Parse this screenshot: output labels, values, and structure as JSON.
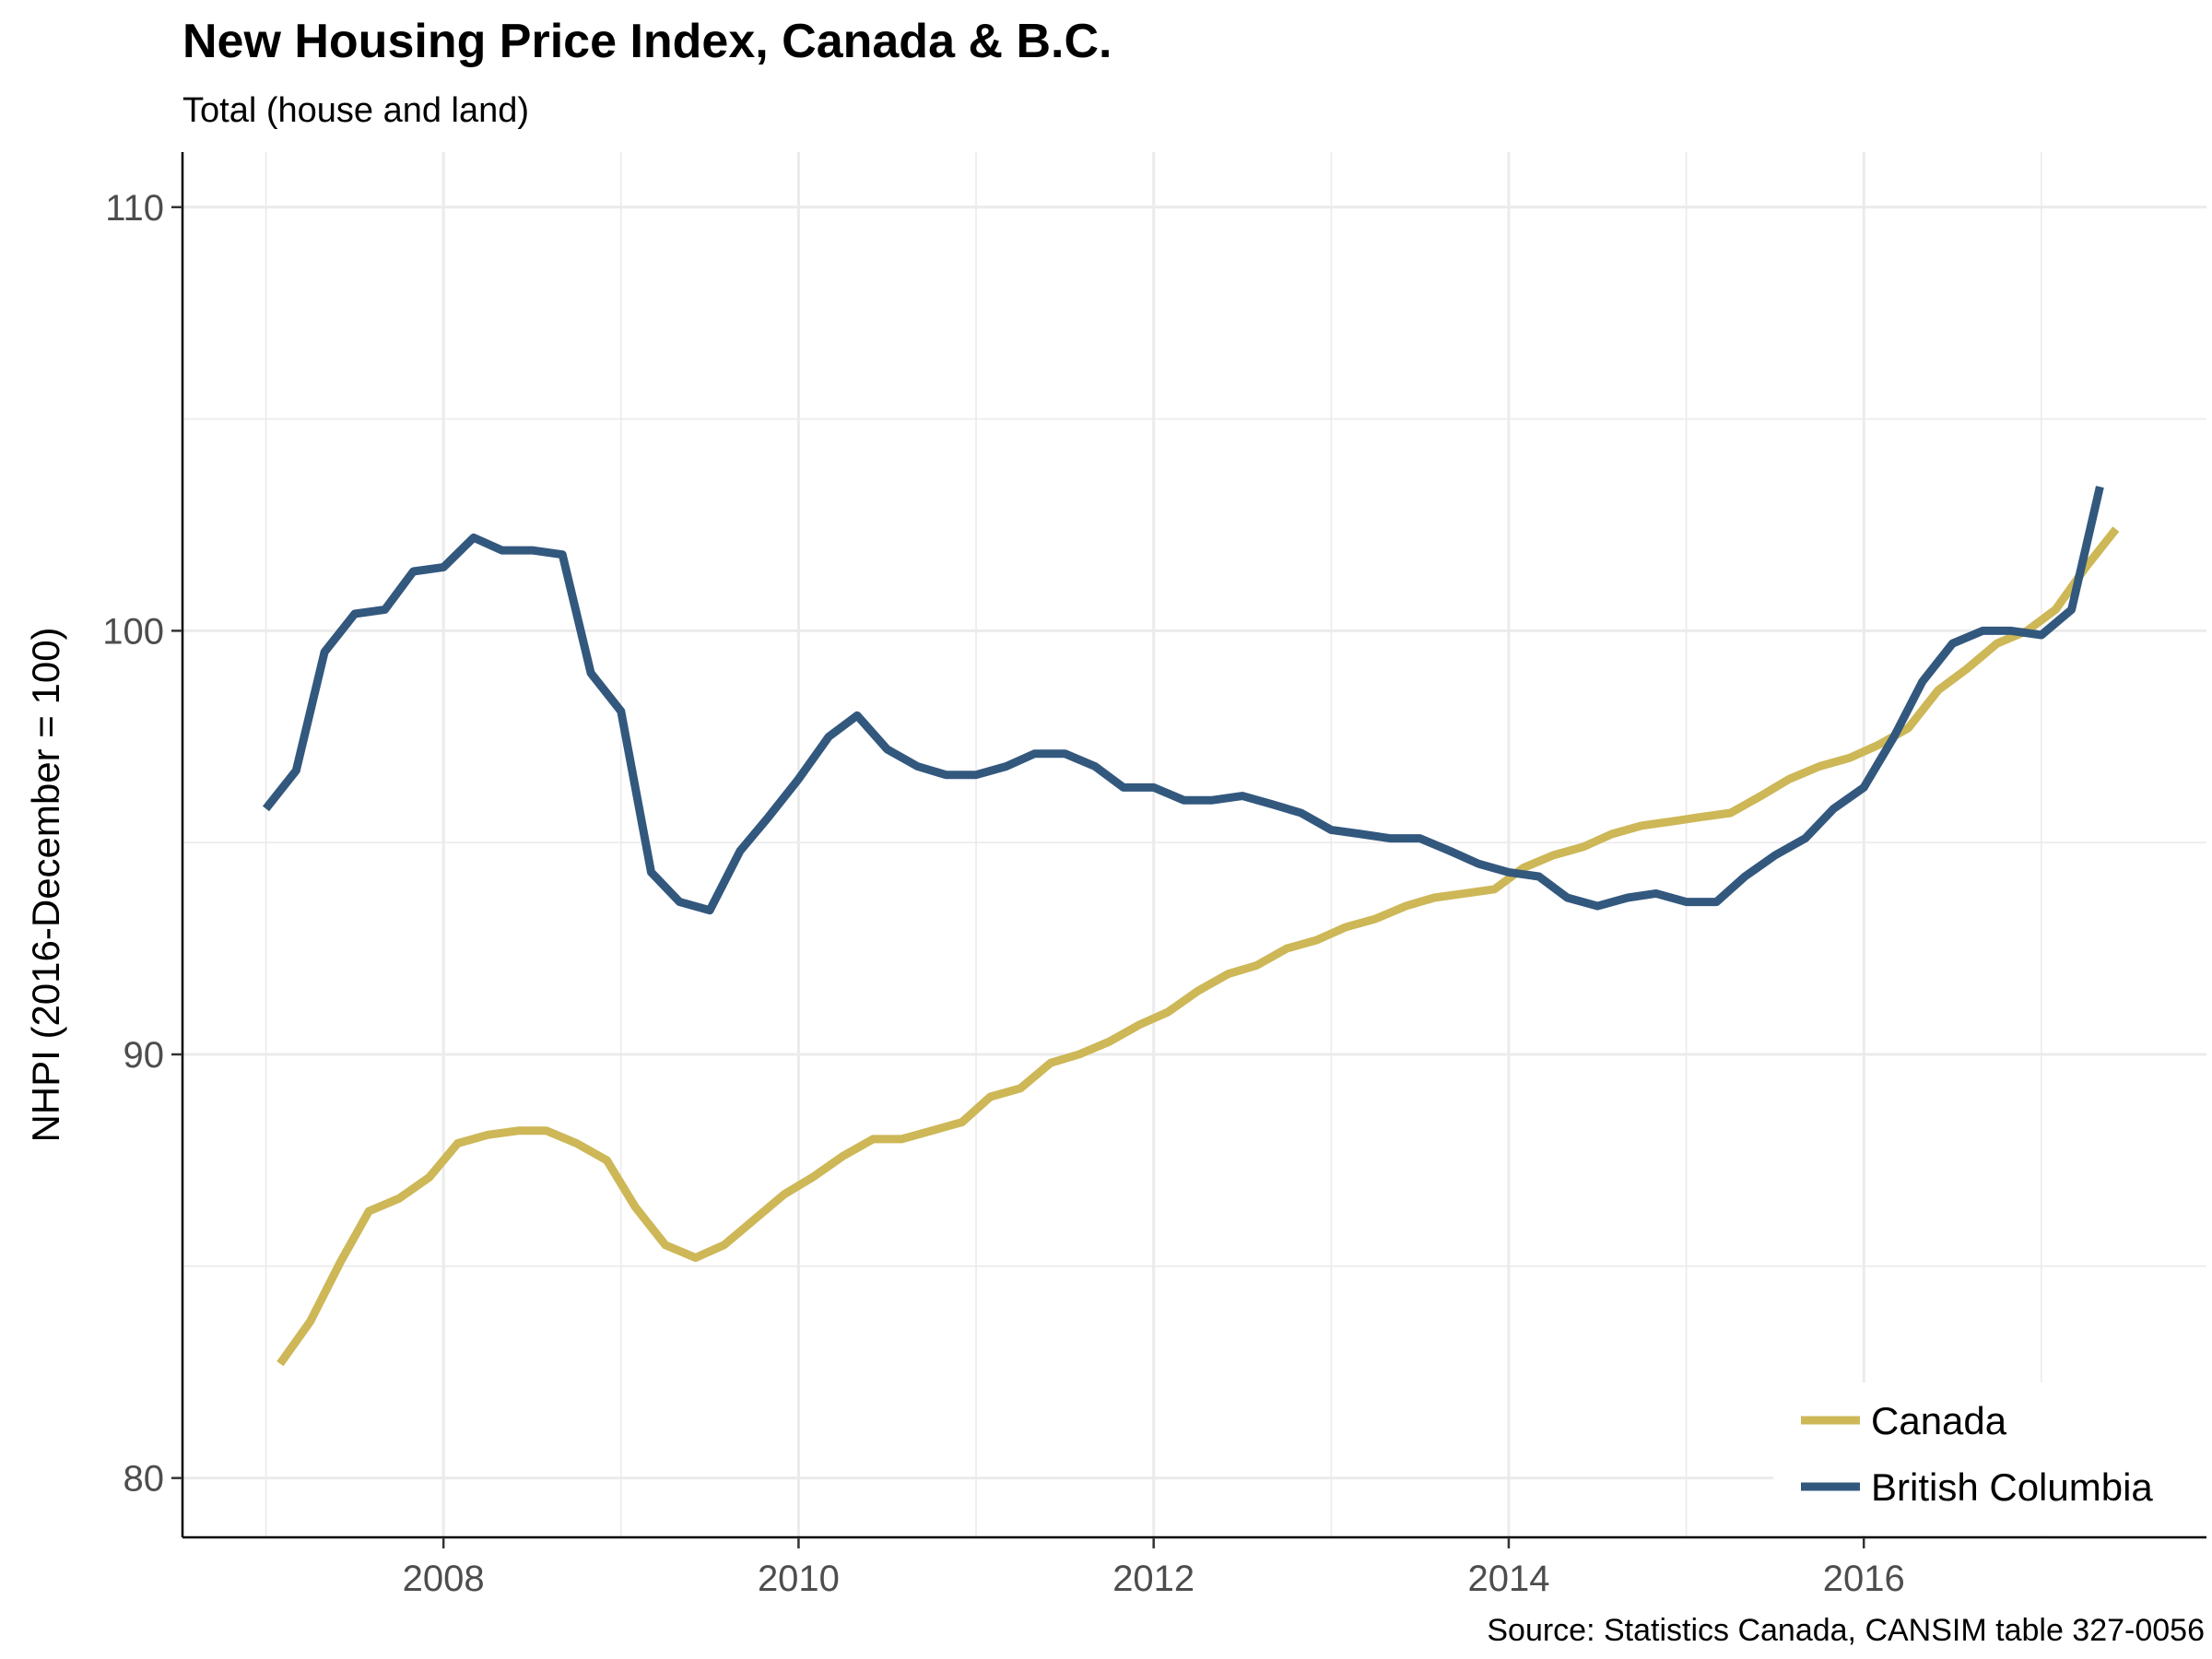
{
  "chart_data": {
    "type": "line",
    "title": "New Housing Price Index, Canada & B.C.",
    "subtitle": "Total (house and land)",
    "ylabel": "NHPI (2016-December = 100)",
    "xlabel": "",
    "caption": "Source: Statistics Canada, CANSIM table 327-0056",
    "xlim": [
      2006.53,
      2017.93
    ],
    "ylim": [
      78.6,
      111.3
    ],
    "x_ticks": [
      2008,
      2010,
      2012,
      2014,
      2016
    ],
    "x_tick_labels": [
      "2008",
      "2010",
      "2012",
      "2014",
      "2016"
    ],
    "y_ticks": [
      80,
      90,
      100,
      110
    ],
    "y_tick_labels": [
      "80",
      "90",
      "100",
      "110"
    ],
    "grid": true,
    "legend_position": "bottom-right",
    "series": [
      {
        "name": "Canada",
        "color": "#CDB757",
        "points": [
          [
            2007.08,
            82.7
          ],
          [
            2007.25,
            83.7
          ],
          [
            2007.42,
            85.1
          ],
          [
            2007.58,
            86.3
          ],
          [
            2007.75,
            86.6
          ],
          [
            2007.92,
            87.1
          ],
          [
            2008.08,
            87.9
          ],
          [
            2008.25,
            88.1
          ],
          [
            2008.42,
            88.2
          ],
          [
            2008.58,
            88.2
          ],
          [
            2008.75,
            87.9
          ],
          [
            2008.92,
            87.5
          ],
          [
            2009.08,
            86.4
          ],
          [
            2009.25,
            85.5
          ],
          [
            2009.42,
            85.2
          ],
          [
            2009.58,
            85.5
          ],
          [
            2009.75,
            86.1
          ],
          [
            2009.92,
            86.7
          ],
          [
            2010.08,
            87.1
          ],
          [
            2010.25,
            87.6
          ],
          [
            2010.42,
            88.0
          ],
          [
            2010.58,
            88.0
          ],
          [
            2010.75,
            88.2
          ],
          [
            2010.92,
            88.4
          ],
          [
            2011.08,
            89.0
          ],
          [
            2011.25,
            89.2
          ],
          [
            2011.42,
            89.8
          ],
          [
            2011.58,
            90.0
          ],
          [
            2011.75,
            90.3
          ],
          [
            2011.92,
            90.7
          ],
          [
            2012.08,
            91.0
          ],
          [
            2012.25,
            91.5
          ],
          [
            2012.42,
            91.9
          ],
          [
            2012.58,
            92.1
          ],
          [
            2012.75,
            92.5
          ],
          [
            2012.92,
            92.7
          ],
          [
            2013.08,
            93.0
          ],
          [
            2013.25,
            93.2
          ],
          [
            2013.42,
            93.5
          ],
          [
            2013.58,
            93.7
          ],
          [
            2013.75,
            93.8
          ],
          [
            2013.92,
            93.9
          ],
          [
            2014.08,
            94.4
          ],
          [
            2014.25,
            94.7
          ],
          [
            2014.42,
            94.9
          ],
          [
            2014.58,
            95.2
          ],
          [
            2014.75,
            95.4
          ],
          [
            2014.92,
            95.5
          ],
          [
            2015.08,
            95.6
          ],
          [
            2015.25,
            95.7
          ],
          [
            2015.42,
            96.1
          ],
          [
            2015.58,
            96.5
          ],
          [
            2015.75,
            96.8
          ],
          [
            2015.92,
            97.0
          ],
          [
            2016.08,
            97.3
          ],
          [
            2016.25,
            97.7
          ],
          [
            2016.42,
            98.6
          ],
          [
            2016.58,
            99.1
          ],
          [
            2016.75,
            99.7
          ],
          [
            2016.92,
            100.0
          ],
          [
            2017.08,
            100.5
          ],
          [
            2017.25,
            101.5
          ],
          [
            2017.42,
            102.4
          ]
        ]
      },
      {
        "name": "British Columbia",
        "color": "#33587E",
        "points": [
          [
            2007.0,
            95.8
          ],
          [
            2007.17,
            96.7
          ],
          [
            2007.33,
            99.5
          ],
          [
            2007.5,
            100.4
          ],
          [
            2007.67,
            100.5
          ],
          [
            2007.83,
            101.4
          ],
          [
            2008.0,
            101.5
          ],
          [
            2008.17,
            102.2
          ],
          [
            2008.33,
            101.9
          ],
          [
            2008.5,
            101.9
          ],
          [
            2008.67,
            101.8
          ],
          [
            2008.83,
            99.0
          ],
          [
            2009.0,
            98.1
          ],
          [
            2009.17,
            94.3
          ],
          [
            2009.33,
            93.6
          ],
          [
            2009.5,
            93.4
          ],
          [
            2009.67,
            94.8
          ],
          [
            2009.83,
            95.6
          ],
          [
            2010.0,
            96.5
          ],
          [
            2010.17,
            97.5
          ],
          [
            2010.33,
            98.0
          ],
          [
            2010.5,
            97.2
          ],
          [
            2010.67,
            96.8
          ],
          [
            2010.83,
            96.6
          ],
          [
            2011.0,
            96.6
          ],
          [
            2011.17,
            96.8
          ],
          [
            2011.33,
            97.1
          ],
          [
            2011.5,
            97.1
          ],
          [
            2011.67,
            96.8
          ],
          [
            2011.83,
            96.3
          ],
          [
            2012.0,
            96.3
          ],
          [
            2012.17,
            96.0
          ],
          [
            2012.33,
            96.0
          ],
          [
            2012.5,
            96.1
          ],
          [
            2012.67,
            95.9
          ],
          [
            2012.83,
            95.7
          ],
          [
            2013.0,
            95.3
          ],
          [
            2013.17,
            95.2
          ],
          [
            2013.33,
            95.1
          ],
          [
            2013.5,
            95.1
          ],
          [
            2013.67,
            94.8
          ],
          [
            2013.83,
            94.5
          ],
          [
            2014.0,
            94.3
          ],
          [
            2014.17,
            94.2
          ],
          [
            2014.33,
            93.7
          ],
          [
            2014.5,
            93.5
          ],
          [
            2014.67,
            93.7
          ],
          [
            2014.83,
            93.8
          ],
          [
            2015.0,
            93.6
          ],
          [
            2015.17,
            93.6
          ],
          [
            2015.33,
            94.2
          ],
          [
            2015.5,
            94.7
          ],
          [
            2015.67,
            95.1
          ],
          [
            2015.83,
            95.8
          ],
          [
            2016.0,
            96.3
          ],
          [
            2016.17,
            97.5
          ],
          [
            2016.33,
            98.8
          ],
          [
            2016.5,
            99.7
          ],
          [
            2016.67,
            100.0
          ],
          [
            2016.83,
            100.0
          ],
          [
            2017.0,
            99.9
          ],
          [
            2017.17,
            100.5
          ],
          [
            2017.33,
            103.4
          ]
        ]
      }
    ]
  }
}
